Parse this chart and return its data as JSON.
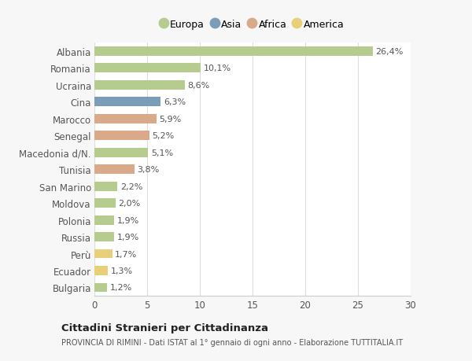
{
  "countries": [
    "Albania",
    "Romania",
    "Ucraina",
    "Cina",
    "Marocco",
    "Senegal",
    "Macedonia d/N.",
    "Tunisia",
    "San Marino",
    "Moldova",
    "Polonia",
    "Russia",
    "Perù",
    "Ecuador",
    "Bulgaria"
  ],
  "values": [
    26.4,
    10.1,
    8.6,
    6.3,
    5.9,
    5.2,
    5.1,
    3.8,
    2.2,
    2.0,
    1.9,
    1.9,
    1.7,
    1.3,
    1.2
  ],
  "labels": [
    "26,4%",
    "10,1%",
    "8,6%",
    "6,3%",
    "5,9%",
    "5,2%",
    "5,1%",
    "3,8%",
    "2,2%",
    "2,0%",
    "1,9%",
    "1,9%",
    "1,7%",
    "1,3%",
    "1,2%"
  ],
  "continents": [
    "Europa",
    "Europa",
    "Europa",
    "Asia",
    "Africa",
    "Africa",
    "Europa",
    "Africa",
    "Europa",
    "Europa",
    "Europa",
    "Europa",
    "America",
    "America",
    "Europa"
  ],
  "colors": {
    "Europa": "#b5cc8e",
    "Asia": "#7b9eb8",
    "Africa": "#d9a98a",
    "America": "#e8cf7a"
  },
  "xlim": [
    0,
    30
  ],
  "xticks": [
    0,
    5,
    10,
    15,
    20,
    25,
    30
  ],
  "bg_color": "#f7f7f7",
  "plot_bg_color": "#ffffff",
  "title": "Cittadini Stranieri per Cittadinanza",
  "subtitle": "PROVINCIA DI RIMINI - Dati ISTAT al 1° gennaio di ogni anno - Elaborazione TUTTITALIA.IT",
  "bar_height": 0.55,
  "label_fontsize": 8.0,
  "ytick_fontsize": 8.5,
  "xtick_fontsize": 8.5
}
